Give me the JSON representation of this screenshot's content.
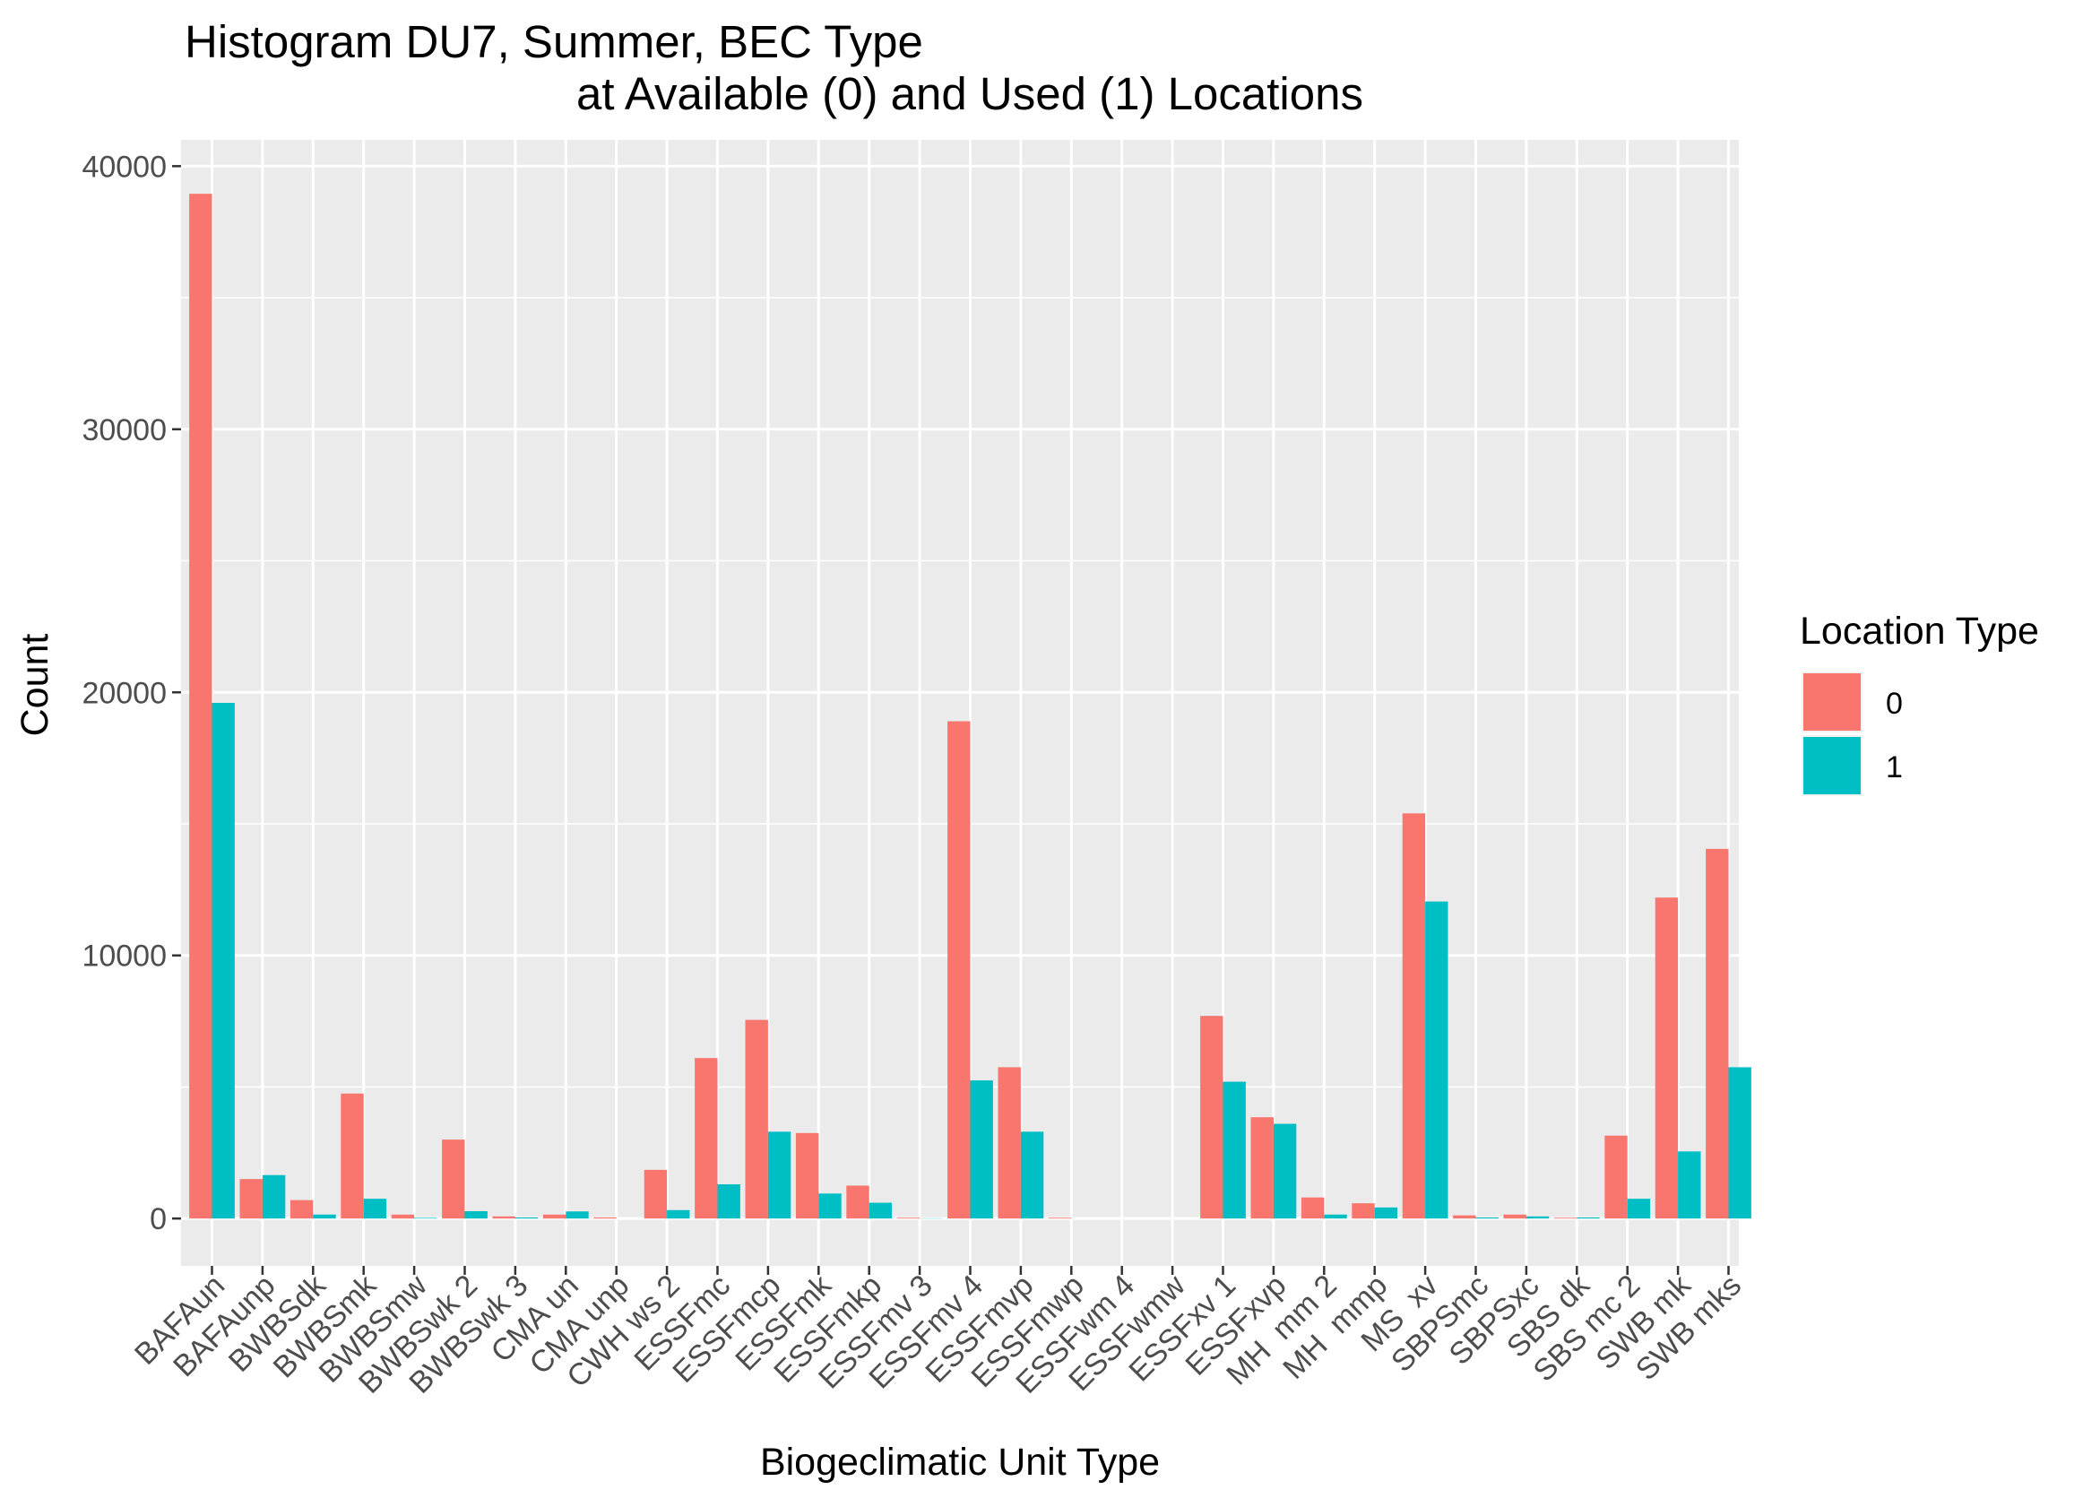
{
  "chart_data": {
    "type": "bar",
    "title": "Histogram DU7, Summer, BEC Type",
    "subtitle": "at Available (0) and Used (1) Locations",
    "xlabel": "Biogeclimatic Unit Type",
    "ylabel": "Count",
    "ylim": [
      -1800,
      41000
    ],
    "yticks": [
      0,
      10000,
      20000,
      30000,
      40000
    ],
    "ytick_labels": [
      "0",
      "10000",
      "20000",
      "30000",
      "40000"
    ],
    "grid": true,
    "legend": {
      "title": "Location Type",
      "placement": "right"
    },
    "categories": [
      "BAFAun",
      "BAFAunp",
      "BWBSdk",
      "BWBSmk",
      "BWBSmw",
      "BWBSwk 2",
      "BWBSwk 3",
      "CMA un",
      "CMA unp",
      "CWH ws 2",
      "ESSFmc",
      "ESSFmcp",
      "ESSFmk",
      "ESSFmkp",
      "ESSFmv 3",
      "ESSFmv 4",
      "ESSFmvp",
      "ESSFmwp",
      "ESSFwm 4",
      "ESSFwmw",
      "ESSFxv 1",
      "ESSFxvp",
      "MH  mm 2",
      "MH  mmp",
      "MS  xv",
      "SBPSmc",
      "SBPSxc",
      "SBS dk",
      "SBS mc 2",
      "SWB mk",
      "SWB mks"
    ],
    "series": [
      {
        "name": "0",
        "color": "#F8766D",
        "values": [
          38950,
          1500,
          700,
          4750,
          150,
          3000,
          80,
          150,
          40,
          1850,
          6100,
          7550,
          3250,
          1250,
          30,
          18900,
          5750,
          30,
          0,
          0,
          7700,
          3850,
          800,
          580,
          15400,
          120,
          150,
          30,
          3150,
          12200,
          14050
        ]
      },
      {
        "name": "1",
        "color": "#00BFC4",
        "values": [
          19600,
          1650,
          150,
          750,
          25,
          280,
          40,
          270,
          0,
          320,
          1300,
          3300,
          950,
          600,
          10,
          5250,
          3300,
          0,
          0,
          0,
          5200,
          3600,
          150,
          420,
          12050,
          40,
          80,
          40,
          750,
          2550,
          5750
        ]
      }
    ]
  }
}
